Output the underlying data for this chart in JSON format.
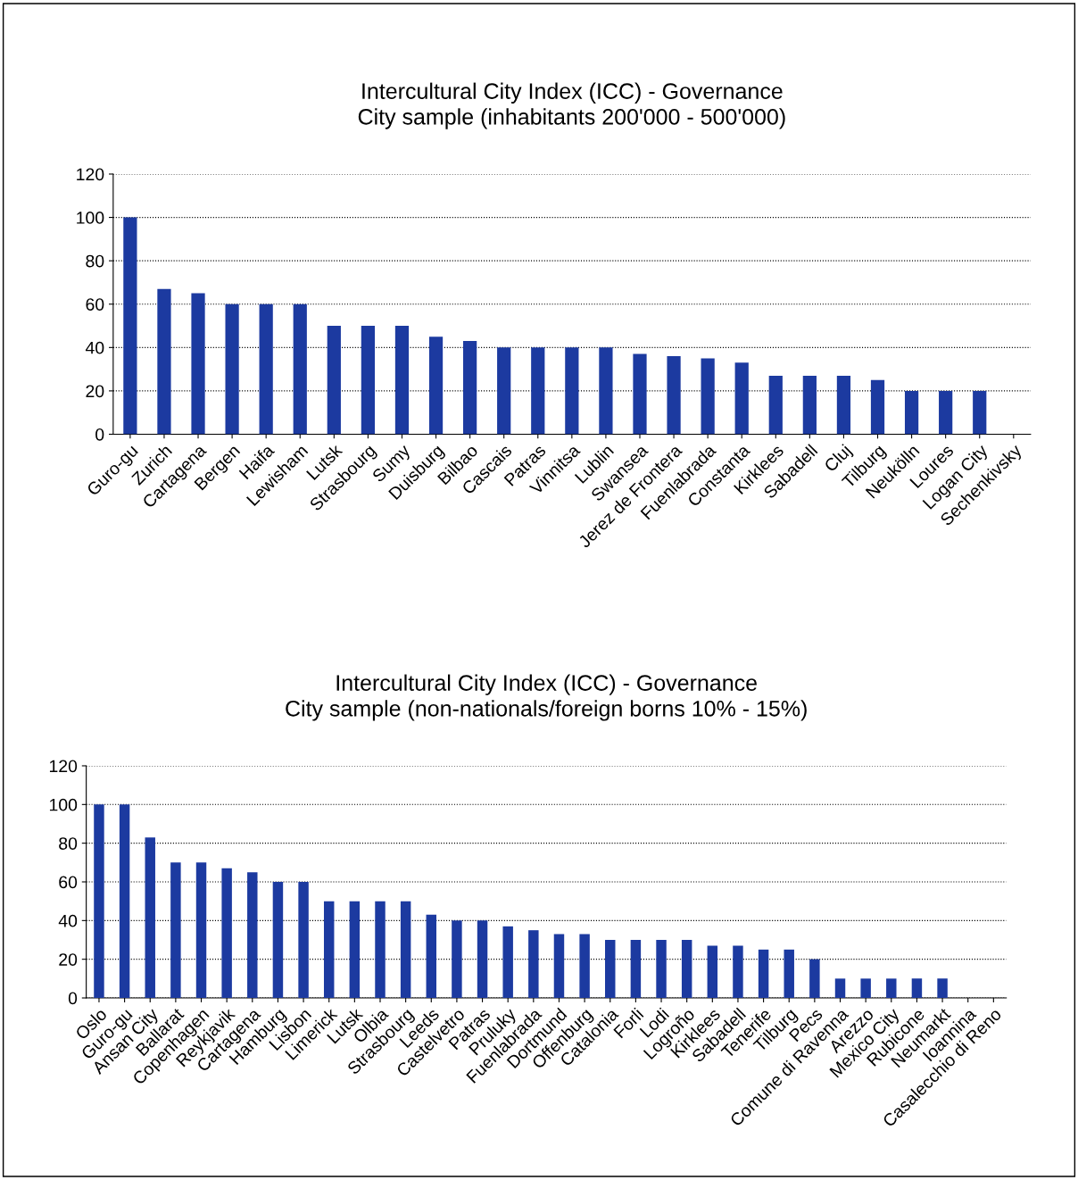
{
  "chart_data": [
    {
      "type": "bar",
      "title": "Intercultural City Index (ICC) - Governance\nCity sample (inhabitants 200'000 - 500'000)",
      "categories": [
        "Guro-gu",
        "Zurich",
        "Cartagena",
        "Bergen",
        "Haifa",
        "Lewisham",
        "Lutsk",
        "Strasbourg",
        "Sumy",
        "Duisburg",
        "Bilbao",
        "Cascais",
        "Patras",
        "Vinnitsa",
        "Lublin",
        "Swansea",
        "Jerez de Frontera",
        "Fuenlabrada",
        "Constanta",
        "Kirklees",
        "Sabadell",
        "Cluj",
        "Tilburg",
        "Neukölln",
        "Loures",
        "Logan City",
        "Sechenkivsky"
      ],
      "values": [
        100,
        67,
        65,
        60,
        60,
        60,
        50,
        50,
        50,
        45,
        43,
        40,
        40,
        40,
        40,
        37,
        36,
        35,
        33,
        27,
        27,
        27,
        25,
        20,
        20,
        20,
        0
      ],
      "color": "#1c3aa0",
      "ylim": [
        0,
        120
      ],
      "yticks": [
        0,
        20,
        40,
        60,
        80,
        100,
        120
      ],
      "grid": "y"
    },
    {
      "type": "bar",
      "title": "Intercultural City Index (ICC) - Governance\nCity sample (non-nationals/foreign borns 10% - 15%)",
      "categories": [
        "Oslo",
        "Guro-gu",
        "Ansan City",
        "Ballarat",
        "Copenhagen",
        "Reykjavik",
        "Cartagena",
        "Hamburg",
        "Lisbon",
        "Limerick",
        "Lutsk",
        "Olbia",
        "Strasbourg",
        "Leeds",
        "Castelvetro",
        "Patras",
        "Pruluky",
        "Fuenlabrada",
        "Dortmund",
        "Offenburg",
        "Catalonia",
        "Forli",
        "Lodi",
        "Logroño",
        "Kirklees",
        "Sabadell",
        "Tenerife",
        "Tilburg",
        "Pecs",
        "Comune di Ravenna",
        "Arezzo",
        "Mexico City",
        "Rubicone",
        "Neumarkt",
        "Ioannina",
        "Casalecchio di Reno"
      ],
      "values": [
        100,
        100,
        83,
        70,
        70,
        67,
        65,
        60,
        60,
        50,
        50,
        50,
        50,
        43,
        40,
        40,
        37,
        35,
        33,
        33,
        30,
        30,
        30,
        30,
        27,
        27,
        25,
        25,
        20,
        10,
        10,
        10,
        10,
        10,
        0,
        0
      ],
      "color": "#1c3aa0",
      "ylim": [
        0,
        120
      ],
      "yticks": [
        0,
        20,
        40,
        60,
        80,
        100,
        120
      ],
      "grid": "y"
    }
  ]
}
